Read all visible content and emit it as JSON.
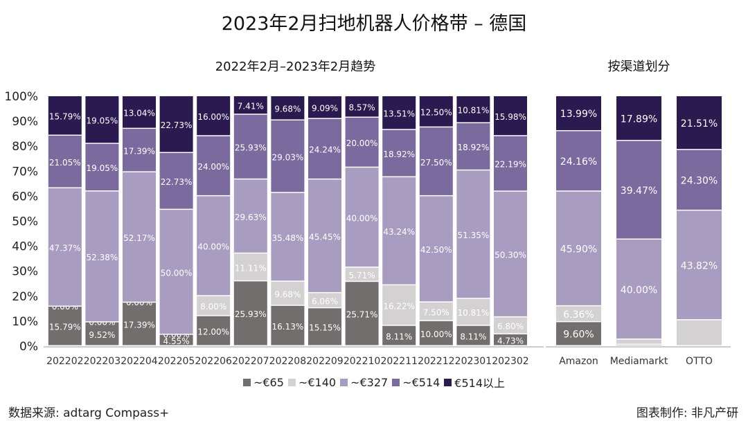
{
  "title": "2023年2月扫地机器人价格带 – 德国",
  "footer": {
    "source": "数据来源: adtarg Compass+",
    "maker": "图表制作: 非凡产研"
  },
  "chart_data": [
    {
      "type": "bar",
      "stacked": true,
      "subtitle": "2022年2月–2023年2月趋势",
      "ylim": [
        0,
        100
      ],
      "yticks": [
        "0%",
        "10%",
        "20%",
        "30%",
        "40%",
        "50%",
        "60%",
        "70%",
        "80%",
        "90%",
        "100%"
      ],
      "categories": [
        "202202",
        "202203",
        "202204",
        "202205",
        "202206",
        "202207",
        "202208",
        "202209",
        "202210",
        "202211",
        "202212",
        "202301",
        "202302"
      ],
      "series": [
        {
          "name": "~€65",
          "color": "#726e6e",
          "values": [
            15.79,
            9.52,
            17.39,
            4.55,
            12.0,
            25.93,
            16.13,
            15.15,
            25.71,
            8.11,
            10.0,
            8.11,
            4.73
          ]
        },
        {
          "name": "~€140",
          "color": "#d3d1d1",
          "values": [
            0.0,
            0.0,
            0.0,
            0.0,
            8.0,
            11.11,
            9.68,
            6.06,
            5.71,
            16.22,
            7.5,
            10.81,
            6.8
          ]
        },
        {
          "name": "~€327",
          "color": "#a99cc1",
          "values": [
            47.37,
            52.38,
            52.17,
            50.0,
            40.0,
            29.63,
            35.48,
            45.45,
            40.0,
            43.24,
            42.5,
            51.35,
            50.3
          ]
        },
        {
          "name": "~€514",
          "color": "#7b6a9e",
          "values": [
            21.05,
            19.05,
            17.39,
            22.73,
            24.0,
            25.93,
            29.03,
            24.24,
            20.0,
            18.92,
            27.5,
            18.92,
            22.19
          ]
        },
        {
          "name": "€514以上",
          "color": "#2b1a50",
          "values": [
            15.79,
            19.05,
            13.04,
            22.73,
            16.0,
            7.41,
            9.68,
            9.09,
            8.57,
            13.51,
            12.5,
            10.81,
            15.98
          ]
        }
      ]
    },
    {
      "type": "bar",
      "stacked": true,
      "subtitle": "按渠道划分",
      "ylim": [
        0,
        100
      ],
      "categories": [
        "Amazon",
        "Mediamarkt",
        "OTTO"
      ],
      "series": [
        {
          "name": "~€65",
          "color": "#726e6e",
          "values": [
            9.6,
            0.53,
            0
          ],
          "labels": [
            "9.60%",
            null,
            null
          ]
        },
        {
          "name": "~€140",
          "color": "#d3d1d1",
          "values": [
            6.36,
            2.11,
            10.37
          ],
          "labels": [
            "6.36%",
            null,
            null
          ]
        },
        {
          "name": "~€327",
          "color": "#a99cc1",
          "values": [
            45.9,
            40.0,
            43.82
          ],
          "labels": [
            "45.90%",
            "40.00%",
            "43.82%"
          ]
        },
        {
          "name": "~€514",
          "color": "#7b6a9e",
          "values": [
            24.16,
            39.47,
            24.3
          ],
          "labels": [
            "24.16%",
            "39.47%",
            "24.30%"
          ]
        },
        {
          "name": "€514以上",
          "color": "#2b1a50",
          "values": [
            13.99,
            17.89,
            21.51
          ],
          "labels": [
            "13.99%",
            "17.89%",
            "21.51%"
          ]
        }
      ]
    }
  ]
}
